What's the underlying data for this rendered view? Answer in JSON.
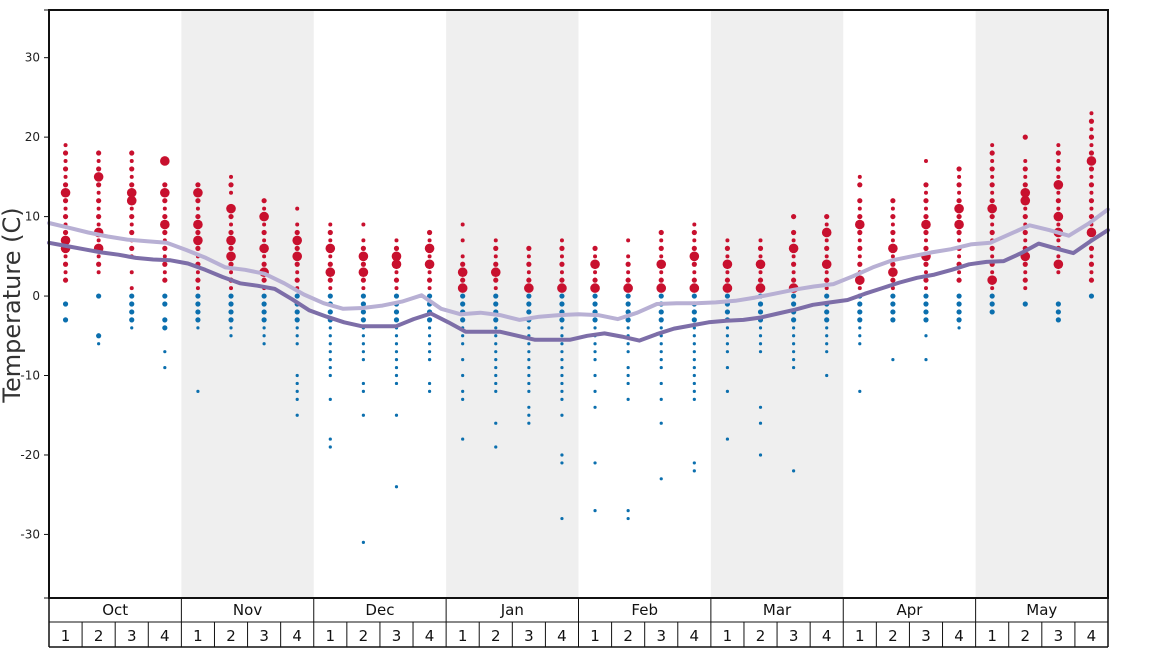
{
  "chart_data": {
    "type": "scatter",
    "title": "",
    "ylabel": "Temperature (C)",
    "xlabel": "",
    "ylim": [
      -38,
      36
    ],
    "yticks": [
      30,
      20,
      10,
      0,
      -10,
      -20,
      -30
    ],
    "ytick_labels": [
      "30",
      "20",
      "10",
      "0",
      "-10",
      "-20",
      "-30"
    ],
    "months": [
      "Oct",
      "Nov",
      "Dec",
      "Jan",
      "Feb",
      "Mar",
      "Apr",
      "May"
    ],
    "weeks_per_month": [
      "1",
      "2",
      "3",
      "4"
    ],
    "shaded_months": [
      "Nov",
      "Jan",
      "Mar",
      "May"
    ],
    "colors": {
      "warm_points": "#c8102e",
      "cold_points": "#0b6fae",
      "line_light": "#b8b0d4",
      "line_dark": "#7d6ea8",
      "shade": "#efefef",
      "frame": "#111111"
    },
    "series": [
      {
        "values": [
          9.2,
          8.6,
          8.0,
          7.5,
          7.1,
          6.9,
          6.7,
          5.8,
          4.8,
          3.6,
          3.3,
          2.8,
          1.6,
          0.2,
          -0.9,
          -1.6,
          -1.5,
          -1.2,
          -0.7,
          0.1,
          -1.6,
          -2.3,
          -2.1,
          -2.4,
          -3.0,
          -2.6,
          -2.4,
          -2.3,
          -2.4,
          -2.9,
          -2.1,
          -1.0,
          -0.9,
          -0.9,
          -0.8,
          -0.6,
          -0.2,
          0.3,
          0.8,
          1.2,
          1.5,
          2.5,
          3.6,
          4.5,
          5.0,
          5.5,
          5.9,
          6.5,
          6.7,
          7.8,
          8.9,
          8.3,
          7.6,
          9.1,
          10.9
        ]
      },
      {
        "values": [
          6.7,
          6.3,
          5.9,
          5.5,
          5.2,
          4.8,
          4.6,
          4.5,
          4.1,
          3.3,
          2.4,
          1.6,
          1.3,
          0.9,
          -0.4,
          -1.8,
          -2.6,
          -3.3,
          -3.8,
          -3.8,
          -3.8,
          -2.9,
          -2.2,
          -3.3,
          -4.5,
          -4.5,
          -4.5,
          -5.0,
          -5.5,
          -5.5,
          -5.5,
          -5.0,
          -4.7,
          -5.1,
          -5.6,
          -4.8,
          -4.1,
          -3.7,
          -3.3,
          -3.1,
          -3.0,
          -2.7,
          -2.2,
          -1.7,
          -1.1,
          -0.8,
          -0.5,
          0.3,
          1.0,
          1.7,
          2.3,
          2.7,
          3.3,
          4.0,
          4.3,
          4.4,
          5.4,
          6.6,
          6.0,
          5.4,
          6.9,
          8.3
        ]
      }
    ],
    "scatter_points": [
      {
        "week": 0,
        "warm": [
          19,
          18,
          17,
          16,
          15,
          14,
          13,
          12,
          11,
          10,
          9,
          8,
          7,
          6,
          5,
          4,
          3,
          2
        ],
        "warm_big": [
          13,
          6,
          7
        ],
        "cold": [
          -1,
          -3
        ]
      },
      {
        "week": 1,
        "warm": [
          18,
          17,
          16,
          15,
          14,
          13,
          12,
          11,
          10,
          9,
          8,
          7,
          6,
          5,
          4,
          3
        ],
        "warm_big": [
          15,
          8,
          6
        ],
        "cold": [
          0,
          -5,
          -6
        ]
      },
      {
        "week": 2,
        "warm": [
          18,
          17,
          16,
          15,
          14,
          13,
          12,
          11,
          10,
          9,
          8,
          7,
          6,
          5,
          3,
          1
        ],
        "warm_big": [
          12,
          13
        ],
        "cold": [
          0,
          -1,
          -2,
          -3,
          -4
        ]
      },
      {
        "week": 3,
        "warm": [
          17,
          14,
          13,
          12,
          11,
          10,
          9,
          8,
          7,
          6,
          5,
          4,
          3,
          2
        ],
        "warm_big": [
          13,
          17,
          9
        ],
        "cold": [
          0,
          -1,
          -3,
          -4,
          -7,
          -9
        ]
      },
      {
        "week": 4,
        "warm": [
          14,
          13,
          12,
          11,
          10,
          9,
          8,
          7,
          6,
          5,
          4,
          3,
          2,
          1
        ],
        "warm_big": [
          13,
          9,
          7
        ],
        "cold": [
          0,
          -1,
          -2,
          -3,
          -4,
          -12
        ]
      },
      {
        "week": 5,
        "warm": [
          15,
          14,
          13,
          11,
          10,
          9,
          8,
          7,
          6,
          5,
          4,
          3,
          2,
          1
        ],
        "warm_big": [
          11,
          7,
          5
        ],
        "cold": [
          0,
          -1,
          -2,
          -3,
          -4,
          -5
        ]
      },
      {
        "week": 6,
        "warm": [
          12,
          11,
          10,
          9,
          8,
          7,
          6,
          5,
          4,
          3,
          2,
          1
        ],
        "warm_big": [
          10,
          6,
          3
        ],
        "cold": [
          0,
          -1,
          -2,
          -3,
          -4,
          -5,
          -6
        ]
      },
      {
        "week": 7,
        "warm": [
          11,
          9,
          8,
          7,
          6,
          5,
          4,
          3,
          2,
          1
        ],
        "warm_big": [
          7,
          5
        ],
        "cold": [
          0,
          -1,
          -2,
          -3,
          -4,
          -5,
          -6,
          -10,
          -11,
          -12,
          -13,
          -15
        ]
      },
      {
        "week": 8,
        "warm": [
          9,
          8,
          7,
          6,
          5,
          4,
          3,
          2,
          1
        ],
        "warm_big": [
          6,
          3
        ],
        "cold": [
          0,
          -1,
          -2,
          -3,
          -4,
          -5,
          -6,
          -7,
          -8,
          -9,
          -10,
          -13,
          -18,
          -19
        ]
      },
      {
        "week": 9,
        "warm": [
          9,
          7,
          6,
          5,
          4,
          3,
          2,
          1
        ],
        "warm_big": [
          5,
          3
        ],
        "cold": [
          0,
          -1,
          -2,
          -3,
          -4,
          -5,
          -6,
          -7,
          -8,
          -11,
          -12,
          -15,
          -31
        ]
      },
      {
        "week": 10,
        "warm": [
          7,
          6,
          5,
          4,
          3,
          2,
          1
        ],
        "warm_big": [
          5,
          4
        ],
        "cold": [
          0,
          -1,
          -2,
          -3,
          -4,
          -5,
          -6,
          -7,
          -8,
          -9,
          -10,
          -11,
          -15,
          -24
        ]
      },
      {
        "week": 11,
        "warm": [
          8,
          7,
          6,
          5,
          4,
          3,
          2,
          1
        ],
        "warm_big": [
          6,
          4
        ],
        "cold": [
          0,
          -1,
          -2,
          -3,
          -4,
          -5,
          -6,
          -7,
          -8,
          -11,
          -12
        ]
      },
      {
        "week": 12,
        "warm": [
          9,
          7,
          5,
          4,
          3,
          2,
          1
        ],
        "warm_big": [
          3,
          1
        ],
        "cold": [
          0,
          -1,
          -2,
          -3,
          -4,
          -5,
          -6,
          -8,
          -10,
          -12,
          -13,
          -18
        ]
      },
      {
        "week": 13,
        "warm": [
          7,
          6,
          5,
          4,
          3,
          2,
          1
        ],
        "warm_big": [
          3
        ],
        "cold": [
          0,
          -1,
          -2,
          -3,
          -4,
          -5,
          -6,
          -7,
          -8,
          -9,
          -10,
          -11,
          -12,
          -16,
          -19
        ]
      },
      {
        "week": 14,
        "warm": [
          6,
          5,
          4,
          3,
          2,
          1
        ],
        "warm_big": [
          1
        ],
        "cold": [
          0,
          -1,
          -2,
          -3,
          -4,
          -5,
          -6,
          -7,
          -8,
          -9,
          -10,
          -11,
          -12,
          -14,
          -15,
          -16
        ]
      },
      {
        "week": 15,
        "warm": [
          7,
          6,
          5,
          4,
          3,
          2,
          1
        ],
        "warm_big": [
          1
        ],
        "cold": [
          0,
          -1,
          -2,
          -3,
          -4,
          -5,
          -6,
          -7,
          -8,
          -9,
          -10,
          -11,
          -12,
          -13,
          -15,
          -20,
          -21,
          -28
        ]
      },
      {
        "week": 16,
        "warm": [
          6,
          5,
          4,
          3,
          2,
          1
        ],
        "warm_big": [
          4,
          1
        ],
        "cold": [
          0,
          -1,
          -2,
          -3,
          -4,
          -5,
          -6,
          -7,
          -8,
          -10,
          -12,
          -14,
          -21,
          -27
        ]
      },
      {
        "week": 17,
        "warm": [
          7,
          5,
          4,
          3,
          2,
          1
        ],
        "warm_big": [
          1
        ],
        "cold": [
          0,
          -1,
          -2,
          -3,
          -4,
          -5,
          -6,
          -7,
          -9,
          -10,
          -11,
          -13,
          -27,
          -28
        ]
      },
      {
        "week": 18,
        "warm": [
          8,
          7,
          6,
          5,
          4,
          3,
          2,
          1
        ],
        "warm_big": [
          4,
          1
        ],
        "cold": [
          0,
          -1,
          -2,
          -3,
          -4,
          -5,
          -6,
          -7,
          -8,
          -9,
          -11,
          -13,
          -16,
          -23
        ]
      },
      {
        "week": 19,
        "warm": [
          9,
          8,
          7,
          6,
          5,
          4,
          3,
          2,
          1
        ],
        "warm_big": [
          5,
          1
        ],
        "cold": [
          0,
          -1,
          -2,
          -3,
          -4,
          -5,
          -6,
          -7,
          -8,
          -9,
          -10,
          -11,
          -12,
          -13,
          -21,
          -22
        ]
      },
      {
        "week": 20,
        "warm": [
          7,
          6,
          5,
          4,
          3,
          2,
          1
        ],
        "warm_big": [
          4,
          1
        ],
        "cold": [
          0,
          -1,
          -2,
          -3,
          -4,
          -5,
          -6,
          -7,
          -9,
          -12,
          -18
        ]
      },
      {
        "week": 21,
        "warm": [
          7,
          6,
          5,
          4,
          3,
          2,
          1
        ],
        "warm_big": [
          4,
          1
        ],
        "cold": [
          0,
          -1,
          -2,
          -3,
          -4,
          -5,
          -6,
          -7,
          -14,
          -16,
          -20
        ]
      },
      {
        "week": 22,
        "warm": [
          10,
          8,
          7,
          6,
          5,
          4,
          3,
          2,
          1
        ],
        "warm_big": [
          6,
          1
        ],
        "cold": [
          0,
          -1,
          -2,
          -3,
          -4,
          -5,
          -6,
          -7,
          -8,
          -9,
          -22
        ]
      },
      {
        "week": 23,
        "warm": [
          10,
          9,
          8,
          7,
          6,
          5,
          4,
          3,
          2,
          1
        ],
        "warm_big": [
          8,
          4
        ],
        "cold": [
          0,
          -1,
          -2,
          -3,
          -4,
          -5,
          -6,
          -7,
          -10
        ]
      },
      {
        "week": 24,
        "warm": [
          15,
          14,
          12,
          11,
          10,
          9,
          8,
          7,
          6,
          5,
          4,
          3,
          2,
          1
        ],
        "warm_big": [
          9,
          2
        ],
        "cold": [
          0,
          -1,
          -2,
          -3,
          -4,
          -5,
          -6,
          -12
        ]
      },
      {
        "week": 25,
        "warm": [
          12,
          11,
          10,
          9,
          8,
          7,
          6,
          5,
          4,
          3,
          2,
          1
        ],
        "warm_big": [
          6,
          3
        ],
        "cold": [
          0,
          -1,
          -2,
          -3,
          -8
        ]
      },
      {
        "week": 26,
        "warm": [
          17,
          14,
          13,
          12,
          11,
          10,
          9,
          8,
          7,
          6,
          5,
          4,
          3,
          2,
          1
        ],
        "warm_big": [
          9,
          5
        ],
        "cold": [
          0,
          -1,
          -2,
          -3,
          -5,
          -8
        ]
      },
      {
        "week": 27,
        "warm": [
          16,
          15,
          14,
          13,
          12,
          11,
          10,
          9,
          8,
          7,
          6,
          5,
          4,
          3,
          2
        ],
        "warm_big": [
          11,
          9
        ],
        "cold": [
          0,
          -1,
          -2,
          -3,
          -4
        ]
      },
      {
        "week": 28,
        "warm": [
          19,
          18,
          17,
          16,
          15,
          14,
          13,
          12,
          11,
          10,
          9,
          8,
          7,
          6,
          5,
          4,
          3,
          2,
          1
        ],
        "warm_big": [
          11,
          2
        ],
        "cold": [
          0,
          -1,
          -2
        ]
      },
      {
        "week": 29,
        "warm": [
          20,
          17,
          16,
          15,
          14,
          13,
          12,
          11,
          10,
          9,
          8,
          7,
          6,
          5,
          4,
          3,
          2,
          1
        ],
        "warm_big": [
          13,
          12,
          5
        ],
        "cold": [
          -1
        ]
      },
      {
        "week": 30,
        "warm": [
          19,
          18,
          17,
          16,
          15,
          14,
          13,
          12,
          11,
          10,
          9,
          8,
          7,
          6,
          5,
          4,
          3
        ],
        "warm_big": [
          14,
          10,
          8,
          4
        ],
        "cold": [
          -1,
          -2,
          -3
        ]
      },
      {
        "week": 31,
        "warm": [
          23,
          22,
          21,
          20,
          19,
          18,
          17,
          16,
          15,
          14,
          13,
          12,
          11,
          10,
          9,
          8,
          7,
          6,
          5,
          4,
          3,
          2
        ],
        "warm_big": [
          17,
          8
        ],
        "cold": [
          0
        ]
      }
    ]
  }
}
